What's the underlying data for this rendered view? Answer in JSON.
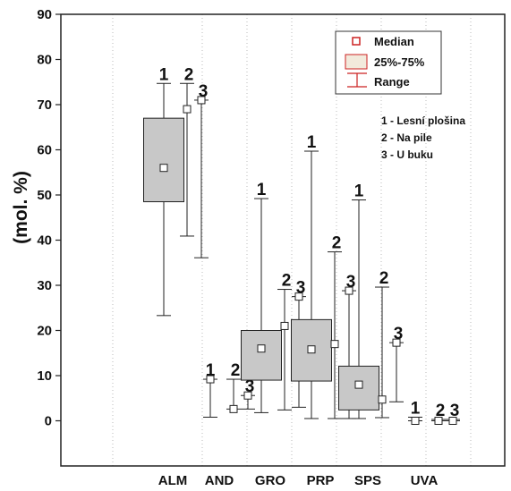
{
  "chart_data": {
    "type": "box",
    "ylabel": "(mol. %)",
    "ylim": [
      -10,
      90
    ],
    "yticks": [
      0,
      10,
      20,
      30,
      40,
      50,
      60,
      70,
      80,
      90
    ],
    "grid": "dotted vertical",
    "categories": [
      "ALM",
      "AND",
      "GRO",
      "PRP",
      "SPS",
      "UVA"
    ],
    "series": [
      {
        "name": "1 - Lesní plošina",
        "label": "1"
      },
      {
        "name": "2 - Na pile",
        "label": "2"
      },
      {
        "name": "3 - U buku",
        "label": "3"
      }
    ],
    "boxes": [
      {
        "category": "ALM",
        "series": "1",
        "min": 23.3,
        "q1": 48.5,
        "median": 56.0,
        "q3": 67.0,
        "max": 74.7
      },
      {
        "category": "ALM",
        "series": "2",
        "min": 40.9,
        "q1": 69.0,
        "median": 69.0,
        "q3": 69.0,
        "max": 74.7
      },
      {
        "category": "ALM",
        "series": "3",
        "min": 36.1,
        "q1": 71.0,
        "median": 71.0,
        "q3": 71.0,
        "max": 71.0
      },
      {
        "category": "AND",
        "series": "1",
        "min": 0.8,
        "q1": 9.2,
        "median": 9.2,
        "q3": 9.2,
        "max": 9.2
      },
      {
        "category": "AND",
        "series": "2",
        "min": 2.6,
        "q1": 2.6,
        "median": 2.6,
        "q3": 2.6,
        "max": 9.2
      },
      {
        "category": "AND",
        "series": "3",
        "min": 2.6,
        "q1": 5.6,
        "median": 5.6,
        "q3": 5.6,
        "max": 5.6
      },
      {
        "category": "GRO",
        "series": "1",
        "min": 1.8,
        "q1": 9.0,
        "median": 16.0,
        "q3": 20.0,
        "max": 49.2
      },
      {
        "category": "GRO",
        "series": "2",
        "min": 2.4,
        "q1": 21.0,
        "median": 21.0,
        "q3": 21.0,
        "max": 29.1
      },
      {
        "category": "GRO",
        "series": "3",
        "min": 3.0,
        "q1": 27.5,
        "median": 27.5,
        "q3": 27.5,
        "max": 27.5
      },
      {
        "category": "PRP",
        "series": "1",
        "min": 0.5,
        "q1": 8.8,
        "median": 15.8,
        "q3": 22.4,
        "max": 59.7
      },
      {
        "category": "PRP",
        "series": "2",
        "min": 0.5,
        "q1": 17.0,
        "median": 17.0,
        "q3": 17.0,
        "max": 37.4
      },
      {
        "category": "PRP",
        "series": "3",
        "min": 0.5,
        "q1": 28.8,
        "median": 28.8,
        "q3": 28.8,
        "max": 28.8
      },
      {
        "category": "SPS",
        "series": "1",
        "min": 0.5,
        "q1": 2.4,
        "median": 8.0,
        "q3": 12.1,
        "max": 48.9
      },
      {
        "category": "SPS",
        "series": "2",
        "min": 0.7,
        "q1": 4.7,
        "median": 4.7,
        "q3": 4.7,
        "max": 29.6
      },
      {
        "category": "SPS",
        "series": "3",
        "min": 4.2,
        "q1": 17.3,
        "median": 17.3,
        "q3": 17.3,
        "max": 17.3
      },
      {
        "category": "UVA",
        "series": "1",
        "min": 0.0,
        "q1": 0.0,
        "median": 0.0,
        "q3": 0.0,
        "max": 0.8
      },
      {
        "category": "UVA",
        "series": "2",
        "min": 0.0,
        "q1": 0.0,
        "median": 0.0,
        "q3": 0.0,
        "max": 0.3
      },
      {
        "category": "UVA",
        "series": "3",
        "min": 0.0,
        "q1": 0.0,
        "median": 0.0,
        "q3": 0.0,
        "max": 0.3
      }
    ],
    "legend": {
      "placement": "top-right",
      "items": [
        {
          "symbol": "median-square-icon",
          "label": "Median"
        },
        {
          "symbol": "box-rect-icon",
          "label": "25%-75%"
        },
        {
          "symbol": "whisker-icon",
          "label": "Range"
        }
      ]
    },
    "series_note": [
      "1 - Lesní plošina",
      "2 - Na pile",
      "3 - U buku"
    ],
    "colors": {
      "box_fill": "#c8c8c8",
      "legend_box_fill": "#f2eadc",
      "legend_accent": "#cc2222",
      "grid": "#aaaaaa"
    }
  }
}
